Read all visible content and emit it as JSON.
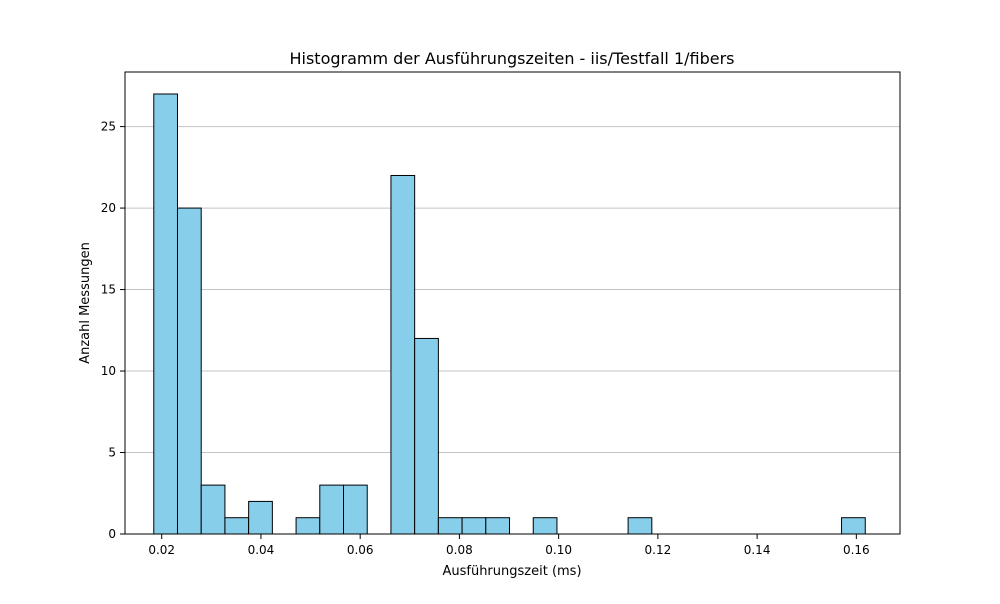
{
  "chart_data": {
    "type": "bar",
    "title": "Histogramm der Ausführungszeiten - iis/Testfall 1/fibers",
    "xlabel": "Ausführungszeit (ms)",
    "ylabel": "Anzahl Messungen",
    "xlim": [
      0.0126,
      0.1688
    ],
    "ylim": [
      0,
      28.35
    ],
    "grid": "y",
    "bar_color": "#87CEEB",
    "edge_color": "#000000",
    "bin_start": 0.0184,
    "bin_width": 0.00478,
    "counts": [
      27,
      20,
      3,
      1,
      2,
      0,
      1,
      3,
      3,
      0,
      22,
      12,
      1,
      1,
      1,
      0,
      1,
      0,
      0,
      0,
      1,
      0,
      0,
      0,
      0,
      0,
      0,
      0,
      0,
      1
    ],
    "x_ticks": [
      {
        "value": 0.02,
        "label": "0.02"
      },
      {
        "value": 0.04,
        "label": "0.04"
      },
      {
        "value": 0.06,
        "label": "0.06"
      },
      {
        "value": 0.08,
        "label": "0.08"
      },
      {
        "value": 0.1,
        "label": "0.10"
      },
      {
        "value": 0.12,
        "label": "0.12"
      },
      {
        "value": 0.14,
        "label": "0.14"
      },
      {
        "value": 0.16,
        "label": "0.16"
      }
    ],
    "y_ticks": [
      {
        "value": 0,
        "label": "0"
      },
      {
        "value": 5,
        "label": "5"
      },
      {
        "value": 10,
        "label": "10"
      },
      {
        "value": 15,
        "label": "15"
      },
      {
        "value": 20,
        "label": "20"
      },
      {
        "value": 25,
        "label": "25"
      }
    ]
  }
}
